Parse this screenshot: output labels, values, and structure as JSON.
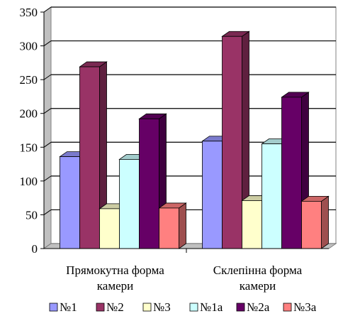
{
  "chart_data": {
    "type": "bar",
    "style": "3d-clustered-column",
    "categories": [
      "Прямокутна форма камери",
      "Склепінна форма камери"
    ],
    "category_label_lines": [
      [
        "Прямокутна форма",
        "камери"
      ],
      [
        "Склепінна форма",
        "камери"
      ]
    ],
    "series": [
      {
        "name": "№1",
        "color": "#9999ff",
        "values": [
          136,
          159
        ]
      },
      {
        "name": "№2",
        "color": "#993366",
        "values": [
          269,
          314
        ]
      },
      {
        "name": "№3",
        "color": "#ffffcc",
        "values": [
          59,
          71
        ]
      },
      {
        "name": "№1а",
        "color": "#ccffff",
        "values": [
          132,
          155
        ]
      },
      {
        "name": "№2а",
        "color": "#660066",
        "values": [
          192,
          224
        ]
      },
      {
        "name": "№3а",
        "color": "#ff8080",
        "values": [
          60,
          70
        ]
      }
    ],
    "ylim": [
      0,
      350
    ],
    "yticks": [
      0,
      50,
      100,
      150,
      200,
      250,
      300,
      350
    ],
    "grid": true,
    "legend_position": "bottom",
    "wall_color": "#c0c0c0",
    "gridline_color": "#000000"
  }
}
